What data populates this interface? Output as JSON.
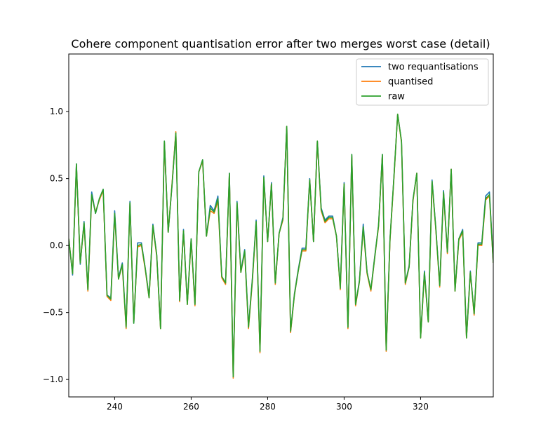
{
  "chart_data": {
    "type": "line",
    "title": "Cohere component quantisation error after two merges worst case (detail)",
    "xlabel": "",
    "ylabel": "",
    "xlim": [
      228,
      339
    ],
    "ylim": [
      -1.13,
      1.43
    ],
    "xticks": [
      240,
      260,
      280,
      300,
      320
    ],
    "yticks": [
      -1.0,
      -0.5,
      0.0,
      0.5,
      1.0
    ],
    "grid": false,
    "legend_position": "top-right",
    "x": [
      228,
      229,
      230,
      231,
      232,
      233,
      234,
      235,
      236,
      237,
      238,
      239,
      240,
      241,
      242,
      243,
      244,
      245,
      246,
      247,
      248,
      249,
      250,
      251,
      252,
      253,
      254,
      255,
      256,
      257,
      258,
      259,
      260,
      261,
      262,
      263,
      264,
      265,
      266,
      267,
      268,
      269,
      270,
      271,
      272,
      273,
      274,
      275,
      276,
      277,
      278,
      279,
      280,
      281,
      282,
      283,
      284,
      285,
      286,
      287,
      288,
      289,
      290,
      291,
      292,
      293,
      294,
      295,
      296,
      297,
      298,
      299,
      300,
      301,
      302,
      303,
      304,
      305,
      306,
      307,
      308,
      309,
      310,
      311,
      312,
      313,
      314,
      315,
      316,
      317,
      318,
      319,
      320,
      321,
      322,
      323,
      324,
      325,
      326,
      327,
      328,
      329,
      330,
      331,
      332,
      333,
      334,
      335,
      336,
      337,
      338,
      339
    ],
    "series": [
      {
        "name": "two requantisations",
        "color": "#1f77b4",
        "values": [
          0.05,
          -0.22,
          0.61,
          -0.14,
          0.18,
          -0.33,
          0.4,
          0.24,
          0.35,
          0.42,
          -0.37,
          -0.39,
          0.26,
          -0.24,
          -0.13,
          -0.6,
          0.33,
          -0.58,
          0.02,
          0.02,
          -0.17,
          -0.38,
          0.16,
          -0.07,
          -0.61,
          0.78,
          0.1,
          0.45,
          0.84,
          -0.41,
          0.12,
          -0.43,
          0.05,
          -0.44,
          0.55,
          0.64,
          0.07,
          0.3,
          0.26,
          0.37,
          -0.23,
          -0.28,
          0.54,
          -0.98,
          0.33,
          -0.19,
          -0.03,
          -0.6,
          -0.25,
          0.19,
          -0.78,
          0.52,
          0.03,
          0.47,
          -0.28,
          0.09,
          0.21,
          0.89,
          -0.64,
          -0.36,
          -0.18,
          -0.02,
          -0.02,
          0.5,
          0.03,
          0.78,
          0.28,
          0.19,
          0.22,
          0.22,
          0.07,
          -0.31,
          0.47,
          -0.61,
          0.68,
          -0.44,
          -0.26,
          0.16,
          -0.2,
          -0.33,
          -0.08,
          0.15,
          0.68,
          -0.78,
          0.05,
          0.5,
          0.98,
          0.78,
          -0.28,
          -0.15,
          0.34,
          0.54,
          -0.68,
          -0.19,
          -0.56,
          0.49,
          0.12,
          -0.29,
          0.41,
          -0.05,
          0.57,
          -0.33,
          0.05,
          0.12,
          -0.68,
          -0.19,
          -0.51,
          0.02,
          0.02,
          0.37,
          0.4,
          -0.12
        ]
      },
      {
        "name": "quantised",
        "color": "#ff7f0e",
        "values": [
          0.05,
          -0.21,
          0.6,
          -0.13,
          0.16,
          -0.34,
          0.37,
          0.25,
          0.34,
          0.41,
          -0.38,
          -0.41,
          0.23,
          -0.25,
          -0.15,
          -0.62,
          0.31,
          -0.57,
          -0.01,
          0.0,
          -0.18,
          -0.39,
          0.14,
          -0.08,
          -0.62,
          0.77,
          0.1,
          0.46,
          0.85,
          -0.42,
          0.11,
          -0.44,
          0.04,
          -0.45,
          0.55,
          0.63,
          0.07,
          0.26,
          0.24,
          0.33,
          -0.24,
          -0.29,
          0.53,
          -0.99,
          0.31,
          -0.2,
          -0.05,
          -0.62,
          -0.27,
          0.17,
          -0.8,
          0.5,
          0.03,
          0.46,
          -0.29,
          0.09,
          0.19,
          0.89,
          -0.65,
          -0.37,
          -0.19,
          -0.04,
          -0.04,
          0.49,
          0.03,
          0.78,
          0.26,
          0.17,
          0.2,
          0.2,
          0.07,
          -0.33,
          0.46,
          -0.62,
          0.67,
          -0.45,
          -0.27,
          0.13,
          -0.21,
          -0.34,
          -0.09,
          0.14,
          0.67,
          -0.79,
          0.04,
          0.49,
          0.98,
          0.77,
          -0.29,
          -0.16,
          0.33,
          0.54,
          -0.69,
          -0.21,
          -0.57,
          0.47,
          0.11,
          -0.31,
          0.39,
          -0.06,
          0.57,
          -0.34,
          0.04,
          0.1,
          -0.69,
          -0.2,
          -0.52,
          0.0,
          0.0,
          0.34,
          0.37,
          -0.13
        ]
      },
      {
        "name": "raw",
        "color": "#2ca02c",
        "values": [
          0.05,
          -0.21,
          0.61,
          -0.13,
          0.17,
          -0.33,
          0.38,
          0.24,
          0.35,
          0.42,
          -0.37,
          -0.4,
          0.24,
          -0.25,
          -0.14,
          -0.61,
          0.32,
          -0.58,
          0.0,
          0.01,
          -0.17,
          -0.39,
          0.15,
          -0.07,
          -0.62,
          0.78,
          0.1,
          0.45,
          0.84,
          -0.41,
          0.11,
          -0.44,
          0.05,
          -0.44,
          0.55,
          0.64,
          0.07,
          0.28,
          0.25,
          0.35,
          -0.23,
          -0.28,
          0.54,
          -0.98,
          0.32,
          -0.2,
          -0.04,
          -0.61,
          -0.26,
          0.18,
          -0.79,
          0.51,
          0.03,
          0.46,
          -0.28,
          0.09,
          0.2,
          0.89,
          -0.64,
          -0.37,
          -0.19,
          -0.03,
          -0.03,
          0.49,
          0.03,
          0.78,
          0.27,
          0.18,
          0.21,
          0.21,
          0.07,
          -0.32,
          0.46,
          -0.61,
          0.68,
          -0.44,
          -0.27,
          0.14,
          -0.2,
          -0.33,
          -0.09,
          0.15,
          0.68,
          -0.78,
          0.05,
          0.5,
          0.98,
          0.78,
          -0.28,
          -0.16,
          0.34,
          0.54,
          -0.69,
          -0.2,
          -0.57,
          0.48,
          0.12,
          -0.3,
          0.4,
          -0.05,
          0.57,
          -0.34,
          0.05,
          0.11,
          -0.69,
          -0.2,
          -0.51,
          0.01,
          0.01,
          0.35,
          0.38,
          -0.13
        ]
      }
    ]
  }
}
